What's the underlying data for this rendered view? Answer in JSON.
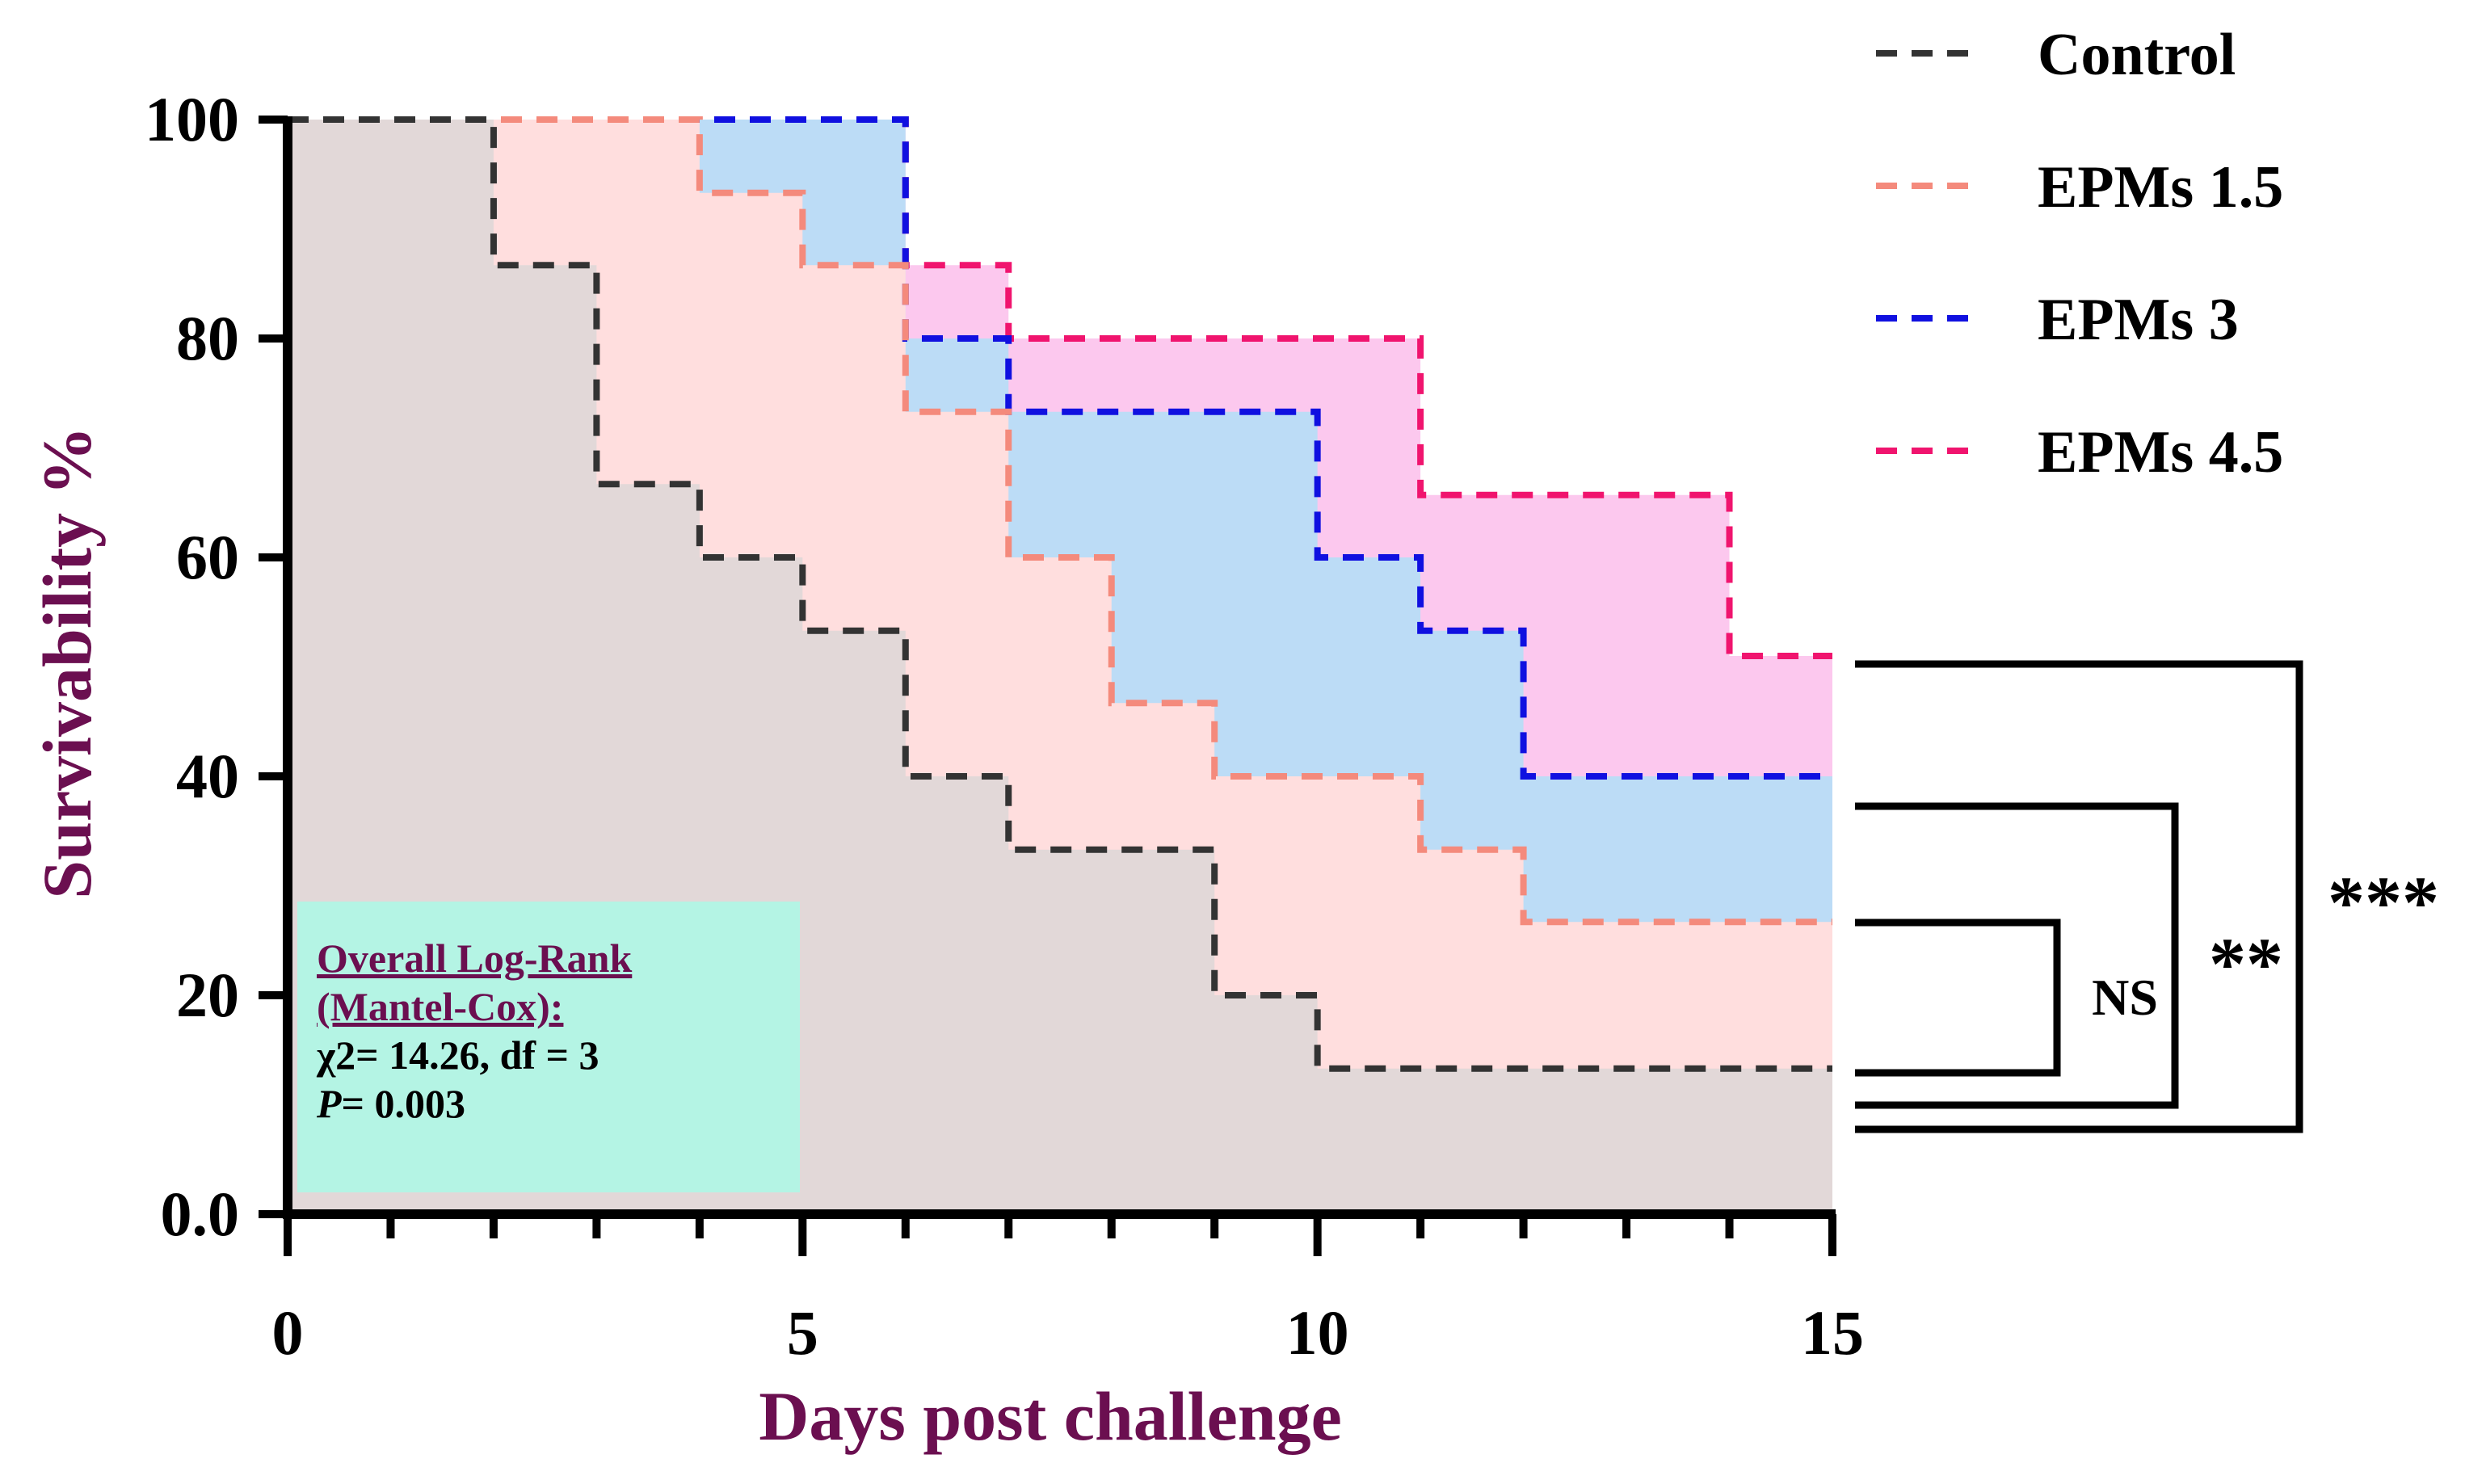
{
  "chart_data": {
    "type": "line",
    "subtype": "step (Kaplan-Meier survival)",
    "xlabel": "Days post challenge",
    "ylabel": "Survivability %",
    "xlim": [
      0,
      15
    ],
    "ylim": [
      0,
      100
    ],
    "xticks": [
      "0",
      "5",
      "10",
      "15"
    ],
    "yticks": [
      "0.0",
      "20",
      "40",
      "60",
      "80",
      "100"
    ],
    "legend_position": "top-right",
    "series": [
      {
        "name": "Control",
        "color": "#333333",
        "fill": "#e2d8d8",
        "x": [
          0,
          2,
          3,
          4,
          5,
          6,
          7,
          9,
          10,
          15
        ],
        "y": [
          100,
          86.7,
          66.7,
          60,
          53.3,
          40,
          33.3,
          20,
          13.3,
          13.3
        ]
      },
      {
        "name": "EPMs 1.5",
        "color": "#f48a7c",
        "fill": "#ffdede",
        "x": [
          0,
          4,
          5,
          6,
          7,
          8,
          9,
          11,
          12,
          15
        ],
        "y": [
          100,
          93.3,
          86.7,
          73.3,
          60,
          46.7,
          40,
          33.3,
          26.7,
          26.7
        ]
      },
      {
        "name": "EPMs 3",
        "color": "#1010e0",
        "fill": "#bcdcf6",
        "x": [
          0,
          6,
          7,
          10,
          11,
          12,
          15
        ],
        "y": [
          100,
          80,
          73.3,
          60,
          53.3,
          40,
          40
        ]
      },
      {
        "name": "EPMs 4.5",
        "color": "#f0146e",
        "fill": "#fcc8ee",
        "x": [
          0,
          6,
          7,
          11,
          14,
          15
        ],
        "y": [
          100,
          86.7,
          80,
          65.7,
          51,
          51
        ]
      }
    ],
    "significance": [
      {
        "label": "NS"
      },
      {
        "label": "**"
      },
      {
        "label": "***"
      }
    ]
  },
  "stats_box": {
    "title_line1": "Overall Log-Rank",
    "title_line2": "(Mantel-Cox):",
    "line3": "χ2= 14.26, df = 3",
    "p_label": "P",
    "p_value": "= 0.003"
  }
}
